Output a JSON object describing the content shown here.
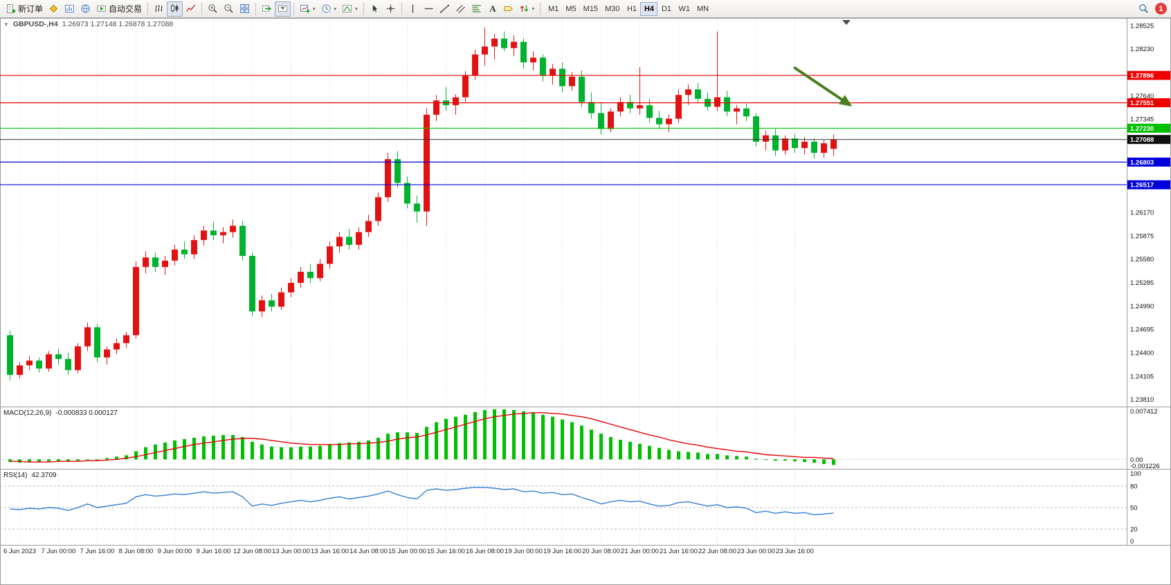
{
  "toolbar": {
    "items": [
      {
        "name": "new-order-button",
        "icon": "new-order-icon",
        "label": "新订单"
      },
      {
        "name": "metaeditor-button",
        "icon": "metaeditor-icon"
      },
      {
        "name": "chart-window-button",
        "icon": "chart-window-icon"
      },
      {
        "name": "market-watch-button",
        "icon": "market-watch-icon"
      },
      {
        "name": "autotrading-button",
        "icon": "autotrading-icon",
        "label": "自动交易"
      },
      {
        "type": "sep"
      },
      {
        "name": "bar-chart-button",
        "icon": "bar-chart-icon"
      },
      {
        "name": "candlestick-chart-button",
        "icon": "candlestick-icon",
        "active": true
      },
      {
        "name": "line-chart-button",
        "icon": "line-chart-icon"
      },
      {
        "type": "sep"
      },
      {
        "name": "zoom-in-button",
        "icon": "zoom-in-icon"
      },
      {
        "name": "zoom-out-button",
        "icon": "zoom-out-icon"
      },
      {
        "name": "tile-windows-button",
        "icon": "tile-windows-icon"
      },
      {
        "type": "sep"
      },
      {
        "name": "auto-scroll-button",
        "icon": "auto-scroll-icon"
      },
      {
        "name": "chart-shift-button",
        "icon": "chart-shift-icon",
        "active": true
      },
      {
        "type": "sep"
      },
      {
        "name": "new-chart-dropdown",
        "icon": "new-chart-icon",
        "caret": true
      },
      {
        "name": "period-dropdown",
        "icon": "clock-icon",
        "caret": true
      },
      {
        "name": "indicators-dropdown",
        "icon": "indicators-icon",
        "caret": true
      },
      {
        "type": "sep"
      },
      {
        "name": "cursor-button",
        "icon": "cursor-icon"
      },
      {
        "name": "crosshair-button",
        "icon": "crosshair-icon"
      },
      {
        "type": "sep"
      },
      {
        "name": "vertical-line-button",
        "icon": "vertical-line-icon"
      },
      {
        "name": "horizontal-line-button",
        "icon": "horizontal-line-icon"
      },
      {
        "name": "trendline-button",
        "icon": "trendline-icon"
      },
      {
        "name": "equidistant-channel-button",
        "icon": "channel-icon"
      },
      {
        "name": "fibonacci-button",
        "icon": "fibonacci-icon"
      },
      {
        "name": "text-button",
        "icon": "text-icon"
      },
      {
        "name": "text-label-button",
        "icon": "label-icon"
      },
      {
        "name": "arrows-dropdown",
        "icon": "arrows-icon",
        "caret": true
      },
      {
        "type": "sep"
      }
    ],
    "timeframes": [
      {
        "label": "M1"
      },
      {
        "label": "M5"
      },
      {
        "label": "M15"
      },
      {
        "label": "M30"
      },
      {
        "label": "H1"
      },
      {
        "label": "H4",
        "active": true
      },
      {
        "label": "D1"
      },
      {
        "label": "W1"
      },
      {
        "label": "MN"
      }
    ],
    "right": {
      "search_icon": "search-icon",
      "notification_count": "1"
    }
  },
  "chart_data": {
    "type": "candlestick",
    "symbol": "GBPUSD-",
    "timeframe": "H4",
    "title": "GBPUSD-,H4",
    "collapse_glyph": "▼",
    "ohlc_text": "1.26973 1.27148 1.26878 1.27088",
    "last_ohlc": {
      "open": 1.26973,
      "high": 1.27148,
      "low": 1.26878,
      "close": 1.27088
    },
    "price_axis": {
      "view_min": 1.2372,
      "view_max": 1.2862,
      "ticks": [
        1.28525,
        1.2823,
        1.2764,
        1.27345,
        1.2617,
        1.25875,
        1.2558,
        1.25285,
        1.2499,
        1.24695,
        1.244,
        1.24105,
        1.2381
      ]
    },
    "time_labels": [
      "6 Jun 2023",
      "7 Jun 00:00",
      "7 Jun 16:00",
      "8 Jun 08:00",
      "9 Jun 00:00",
      "9 Jun 16:00",
      "12 Jun 08:00",
      "13 Jun 00:00",
      "13 Jun 16:00",
      "14 Jun 08:00",
      "15 Jun 00:00",
      "15 Jun 16:00",
      "16 Jun 08:00",
      "19 Jun 00:00",
      "19 Jun 16:00",
      "20 Jun 08:00",
      "21 Jun 00:00",
      "21 Jun 16:00",
      "22 Jun 08:00",
      "23 Jun 00:00",
      "23 Jun 16:00"
    ],
    "colors": {
      "bull": "#e31212",
      "bear": "#00b22d"
    },
    "candles": [
      [
        1.2462,
        1.2468,
        1.2405,
        1.2412
      ],
      [
        1.2412,
        1.2428,
        1.2408,
        1.2424
      ],
      [
        1.2424,
        1.2436,
        1.2418,
        1.243
      ],
      [
        1.243,
        1.2434,
        1.2415,
        1.242
      ],
      [
        1.242,
        1.2442,
        1.2416,
        1.2438
      ],
      [
        1.2438,
        1.2445,
        1.2425,
        1.2432
      ],
      [
        1.2432,
        1.244,
        1.2412,
        1.2418
      ],
      [
        1.2418,
        1.2452,
        1.2414,
        1.2448
      ],
      [
        1.2448,
        1.2478,
        1.2442,
        1.2472
      ],
      [
        1.2472,
        1.2476,
        1.2428,
        1.2434
      ],
      [
        1.2434,
        1.2448,
        1.2425,
        1.2444
      ],
      [
        1.2444,
        1.2458,
        1.2438,
        1.2452
      ],
      [
        1.2452,
        1.2466,
        1.2446,
        1.2462
      ],
      [
        1.2462,
        1.2555,
        1.2458,
        1.2548
      ],
      [
        1.2548,
        1.2568,
        1.254,
        1.256
      ],
      [
        1.256,
        1.2566,
        1.2542,
        1.2548
      ],
      [
        1.2548,
        1.2562,
        1.2538,
        1.2556
      ],
      [
        1.2556,
        1.2576,
        1.255,
        1.257
      ],
      [
        1.257,
        1.258,
        1.2558,
        1.2564
      ],
      [
        1.2564,
        1.2588,
        1.2558,
        1.2582
      ],
      [
        1.2582,
        1.26,
        1.2575,
        1.2594
      ],
      [
        1.2594,
        1.2605,
        1.2582,
        1.2588
      ],
      [
        1.2588,
        1.2598,
        1.2578,
        1.2592
      ],
      [
        1.2592,
        1.2608,
        1.2585,
        1.26
      ],
      [
        1.26,
        1.2606,
        1.2556,
        1.2562
      ],
      [
        1.2562,
        1.2566,
        1.2486,
        1.2492
      ],
      [
        1.2492,
        1.2512,
        1.2485,
        1.2506
      ],
      [
        1.2506,
        1.2514,
        1.2492,
        1.2498
      ],
      [
        1.2498,
        1.2522,
        1.2494,
        1.2516
      ],
      [
        1.2516,
        1.2534,
        1.251,
        1.2528
      ],
      [
        1.2528,
        1.2548,
        1.2522,
        1.2542
      ],
      [
        1.2542,
        1.2552,
        1.2528,
        1.2534
      ],
      [
        1.2534,
        1.2558,
        1.253,
        1.2552
      ],
      [
        1.2552,
        1.258,
        1.2546,
        1.2574
      ],
      [
        1.2574,
        1.2592,
        1.2566,
        1.2586
      ],
      [
        1.2586,
        1.2596,
        1.257,
        1.2576
      ],
      [
        1.2576,
        1.2598,
        1.257,
        1.2592
      ],
      [
        1.2592,
        1.2614,
        1.2586,
        1.2606
      ],
      [
        1.2606,
        1.2642,
        1.26,
        1.2636
      ],
      [
        1.2636,
        1.2692,
        1.263,
        1.2684
      ],
      [
        1.2684,
        1.2694,
        1.2648,
        1.2654
      ],
      [
        1.2654,
        1.2662,
        1.2622,
        1.2628
      ],
      [
        1.2628,
        1.2638,
        1.2604,
        1.2618
      ],
      [
        1.2618,
        1.2748,
        1.26,
        1.274
      ],
      [
        1.274,
        1.2765,
        1.2732,
        1.2758
      ],
      [
        1.2758,
        1.2775,
        1.2745,
        1.2752
      ],
      [
        1.2752,
        1.2766,
        1.274,
        1.2762
      ],
      [
        1.2762,
        1.2795,
        1.2756,
        1.279
      ],
      [
        1.279,
        1.2822,
        1.2784,
        1.2816
      ],
      [
        1.2816,
        1.285,
        1.2802,
        1.2826
      ],
      [
        1.2826,
        1.2842,
        1.281,
        1.2836
      ],
      [
        1.2836,
        1.2845,
        1.282,
        1.2824
      ],
      [
        1.2824,
        1.284,
        1.2814,
        1.2832
      ],
      [
        1.2832,
        1.2836,
        1.2798,
        1.2806
      ],
      [
        1.2806,
        1.282,
        1.2796,
        1.2812
      ],
      [
        1.2812,
        1.2816,
        1.2782,
        1.279
      ],
      [
        1.279,
        1.2804,
        1.2778,
        1.2798
      ],
      [
        1.2798,
        1.2806,
        1.2768,
        1.2776
      ],
      [
        1.2776,
        1.2794,
        1.277,
        1.2788
      ],
      [
        1.2788,
        1.2796,
        1.275,
        1.2756
      ],
      [
        1.2756,
        1.2768,
        1.2735,
        1.2742
      ],
      [
        1.2742,
        1.2756,
        1.2715,
        1.2722
      ],
      [
        1.2722,
        1.2748,
        1.2718,
        1.2744
      ],
      [
        1.2744,
        1.2762,
        1.2738,
        1.2756
      ],
      [
        1.2756,
        1.2765,
        1.2742,
        1.2748
      ],
      [
        1.2748,
        1.28,
        1.274,
        1.2752
      ],
      [
        1.2752,
        1.276,
        1.273,
        1.2736
      ],
      [
        1.2736,
        1.2745,
        1.2722,
        1.2728
      ],
      [
        1.2728,
        1.274,
        1.2718,
        1.2735
      ],
      [
        1.2735,
        1.2772,
        1.273,
        1.2765
      ],
      [
        1.2765,
        1.2778,
        1.2752,
        1.2772
      ],
      [
        1.2772,
        1.278,
        1.2755,
        1.276
      ],
      [
        1.276,
        1.2768,
        1.2745,
        1.275
      ],
      [
        1.275,
        1.2845,
        1.2745,
        1.2762
      ],
      [
        1.2762,
        1.277,
        1.2738,
        1.2744
      ],
      [
        1.2744,
        1.2752,
        1.2728,
        1.2748
      ],
      [
        1.2748,
        1.2754,
        1.2732,
        1.2738
      ],
      [
        1.2738,
        1.2742,
        1.27,
        1.2706
      ],
      [
        1.2706,
        1.272,
        1.2695,
        1.2714
      ],
      [
        1.2714,
        1.2722,
        1.2688,
        1.2695
      ],
      [
        1.2695,
        1.2714,
        1.269,
        1.271
      ],
      [
        1.271,
        1.2716,
        1.2692,
        1.2698
      ],
      [
        1.2698,
        1.2712,
        1.269,
        1.2706
      ],
      [
        1.2706,
        1.271,
        1.2685,
        1.2692
      ],
      [
        1.2692,
        1.2708,
        1.2686,
        1.2704
      ],
      [
        1.2697,
        1.2715,
        1.2688,
        1.2709
      ]
    ],
    "level_lines": [
      {
        "price": 1.27896,
        "color": "#ee0000"
      },
      {
        "price": 1.27551,
        "color": "#ee0000"
      },
      {
        "price": 1.2723,
        "color": "#00c000"
      },
      {
        "price": 1.26803,
        "color": "#0000dd"
      },
      {
        "price": 1.26517,
        "color": "#0000dd"
      }
    ],
    "current_price_line": {
      "price": 1.27088,
      "line_color": "#303030",
      "badge_color": "#101010"
    },
    "annotation_arrow": {
      "from_bar": 81.0,
      "from_price": 1.2799,
      "to_bar": 86.6,
      "to_price": 1.2753,
      "color": "#4a7d1f"
    },
    "macd": {
      "label": "MACD(12,26,9)",
      "values_text": "-0.000833 0.000127",
      "main_last": -0.000833,
      "signal_last": 0.000127,
      "view_min": -0.0014,
      "view_max": 0.0076,
      "axis_ticks": [
        {
          "value": 0.007412,
          "label": "0.007412"
        },
        {
          "value": 0,
          "label": "0.00"
        },
        {
          "value": -0.001226,
          "label": "-0.001226"
        }
      ],
      "histogram_color": "#00c000",
      "signal_color": "#e80000",
      "histogram": [
        -0.0004,
        -0.0005,
        -0.0004,
        -0.0004,
        -0.0003,
        -0.0003,
        -0.0003,
        -0.0002,
        -0.0001,
        0.0,
        0.0002,
        0.0004,
        0.0006,
        0.0012,
        0.0018,
        0.0022,
        0.0025,
        0.0028,
        0.003,
        0.0032,
        0.0034,
        0.0035,
        0.0036,
        0.0036,
        0.0033,
        0.0026,
        0.0022,
        0.0019,
        0.0018,
        0.0018,
        0.0019,
        0.0019,
        0.002,
        0.0022,
        0.0024,
        0.0025,
        0.0026,
        0.0028,
        0.0032,
        0.0038,
        0.004,
        0.004,
        0.0039,
        0.0048,
        0.0055,
        0.006,
        0.0063,
        0.0066,
        0.007,
        0.0073,
        0.0074,
        0.0074,
        0.0073,
        0.0071,
        0.0069,
        0.0066,
        0.0063,
        0.0059,
        0.0055,
        0.005,
        0.0044,
        0.0038,
        0.0033,
        0.0029,
        0.0026,
        0.0023,
        0.002,
        0.0017,
        0.0014,
        0.0012,
        0.0011,
        0.001,
        0.0008,
        0.0008,
        0.0006,
        0.0005,
        0.0004,
        0.0001,
        -0.0001,
        -0.0002,
        -0.0002,
        -0.0003,
        -0.0004,
        -0.0005,
        -0.0007,
        -0.000833
      ],
      "signal": [
        -0.0003,
        -0.0003,
        -0.0004,
        -0.0004,
        -0.0004,
        -0.0003,
        -0.0003,
        -0.0003,
        -0.0002,
        -0.0002,
        -0.0001,
        0.0,
        0.0002,
        0.0004,
        0.0007,
        0.001,
        0.0013,
        0.0016,
        0.0019,
        0.0022,
        0.0024,
        0.0026,
        0.0028,
        0.003,
        0.0031,
        0.0031,
        0.003,
        0.0028,
        0.0026,
        0.0024,
        0.0023,
        0.0022,
        0.0022,
        0.0022,
        0.0022,
        0.0023,
        0.0023,
        0.0024,
        0.0025,
        0.0027,
        0.003,
        0.0032,
        0.0033,
        0.0036,
        0.004,
        0.0044,
        0.0048,
        0.0052,
        0.0056,
        0.006,
        0.0063,
        0.0065,
        0.0067,
        0.0068,
        0.0069,
        0.0069,
        0.0068,
        0.0067,
        0.0065,
        0.0063,
        0.006,
        0.0056,
        0.0052,
        0.0048,
        0.0044,
        0.004,
        0.0036,
        0.0033,
        0.0029,
        0.0026,
        0.0023,
        0.0021,
        0.0018,
        0.0016,
        0.0014,
        0.0012,
        0.0011,
        0.0009,
        0.0007,
        0.0006,
        0.0005,
        0.0004,
        0.0003,
        0.0003,
        0.0002,
        0.000127
      ]
    },
    "rsi": {
      "label": "RSI(14)",
      "value_text": "42.3709",
      "last": 42.3709,
      "view_min": 0,
      "view_max": 100,
      "levels": [
        80,
        50,
        20
      ],
      "axis_ticks": [
        {
          "value": 100,
          "label": "100"
        },
        {
          "value": 80,
          "label": "80"
        },
        {
          "value": 50,
          "label": "50"
        },
        {
          "value": 20,
          "label": "20"
        },
        {
          "value": 0,
          "label": "0"
        }
      ],
      "line_color": "#2f7ed8",
      "level_color": "#b9b9b9",
      "values": [
        48,
        47,
        49,
        48,
        50,
        49,
        46,
        50,
        55,
        50,
        52,
        54,
        56,
        65,
        68,
        66,
        67,
        69,
        68,
        70,
        72,
        70,
        71,
        72,
        65,
        52,
        55,
        53,
        56,
        58,
        60,
        58,
        60,
        63,
        65,
        62,
        64,
        66,
        69,
        73,
        68,
        64,
        62,
        74,
        76,
        74,
        75,
        77,
        78,
        78,
        77,
        75,
        76,
        72,
        73,
        70,
        71,
        68,
        69,
        64,
        60,
        55,
        58,
        60,
        58,
        59,
        55,
        52,
        53,
        57,
        58,
        55,
        52,
        54,
        50,
        51,
        49,
        43,
        45,
        42,
        44,
        42,
        43,
        40,
        41,
        42.37
      ]
    }
  }
}
